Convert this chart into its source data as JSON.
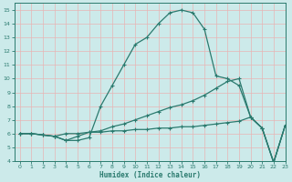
{
  "xlabel": "Humidex (Indice chaleur)",
  "bg_color": "#cceaea",
  "grid_color": "#aed4d4",
  "line_color": "#2a7a6e",
  "xlim": [
    -0.5,
    23
  ],
  "ylim": [
    4,
    15.5
  ],
  "xticks": [
    0,
    1,
    2,
    3,
    4,
    5,
    6,
    7,
    8,
    9,
    10,
    11,
    12,
    13,
    14,
    15,
    16,
    17,
    18,
    19,
    20,
    21,
    22,
    23
  ],
  "yticks": [
    4,
    5,
    6,
    7,
    8,
    9,
    10,
    11,
    12,
    13,
    14,
    15
  ],
  "line1_y": [
    6.0,
    6.0,
    5.9,
    5.8,
    5.5,
    5.5,
    5.7,
    8.0,
    9.5,
    11.0,
    12.5,
    13.0,
    14.0,
    14.8,
    15.0,
    14.8,
    13.6,
    10.2,
    10.0,
    9.5,
    7.2,
    6.4,
    3.9,
    6.6
  ],
  "line2_y": [
    6.0,
    6.0,
    5.9,
    5.8,
    5.5,
    5.8,
    6.1,
    6.2,
    6.5,
    6.7,
    7.0,
    7.3,
    7.6,
    7.9,
    8.1,
    8.4,
    8.8,
    9.3,
    9.8,
    10.0,
    7.2,
    6.4,
    3.9,
    6.6
  ],
  "line3_y": [
    6.0,
    6.0,
    5.9,
    5.8,
    6.0,
    6.0,
    6.1,
    6.1,
    6.2,
    6.2,
    6.3,
    6.3,
    6.4,
    6.4,
    6.5,
    6.5,
    6.6,
    6.7,
    6.8,
    6.9,
    7.2,
    6.4,
    3.9,
    6.6
  ]
}
